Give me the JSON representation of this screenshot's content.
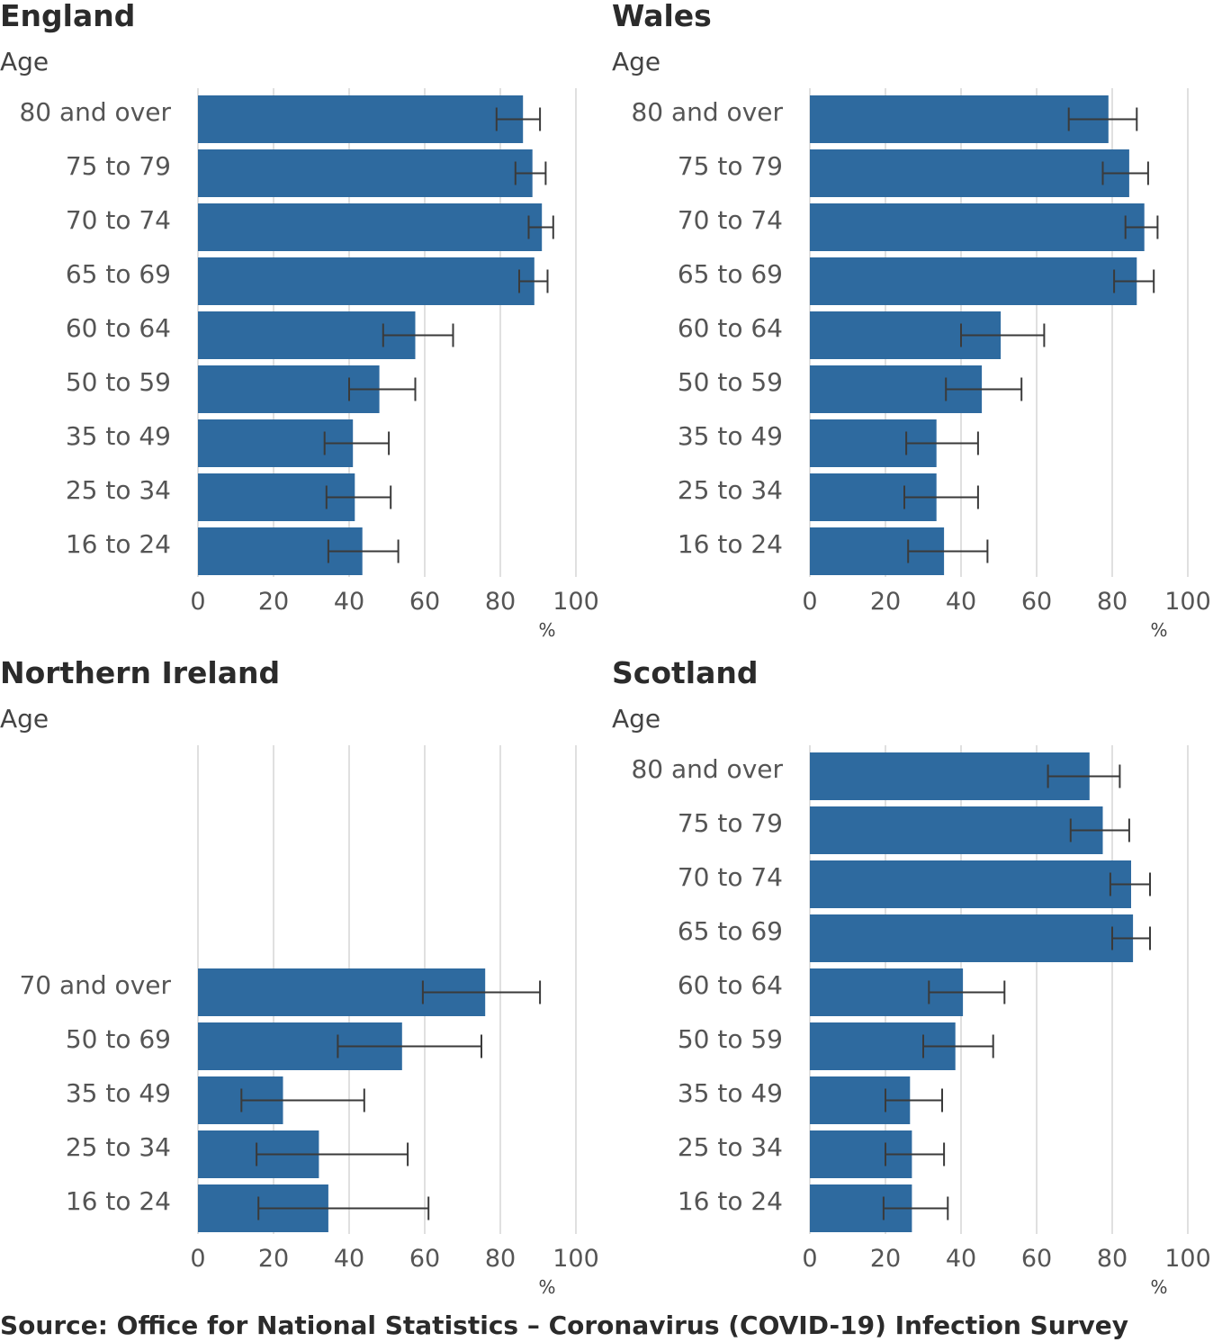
{
  "source": "Source: Office for National Statistics – Coronavirus (COVID-19) Infection Survey",
  "colors": {
    "bar": "#2e6a9f",
    "error_bar": "#3a3a3a",
    "grid": "#d6d6d6"
  },
  "chart_data": [
    {
      "type": "bar",
      "orientation": "horizontal",
      "title": "England",
      "ylabel": "Age",
      "xlabel": "%",
      "xlim": [
        0,
        100
      ],
      "xticks": [
        0,
        20,
        40,
        60,
        80,
        100
      ],
      "error_bars": true,
      "grid": true,
      "categories": [
        "80 and over",
        "75 to 79",
        "70 to 74",
        "65 to 69",
        "60 to 64",
        "50 to 59",
        "35 to 49",
        "25 to 34",
        "16 to 24"
      ],
      "values": [
        86,
        88.5,
        91,
        89,
        57.5,
        48,
        41,
        41.5,
        43.5
      ],
      "lower": [
        79,
        84,
        87.5,
        85,
        49,
        40,
        33.5,
        34,
        34.5
      ],
      "upper": [
        90.5,
        92,
        94,
        92.5,
        67.5,
        57.5,
        50.5,
        51,
        53
      ]
    },
    {
      "type": "bar",
      "orientation": "horizontal",
      "title": "Wales",
      "ylabel": "Age",
      "xlabel": "%",
      "xlim": [
        0,
        100
      ],
      "xticks": [
        0,
        20,
        40,
        60,
        80,
        100
      ],
      "error_bars": true,
      "grid": true,
      "categories": [
        "80 and over",
        "75 to 79",
        "70 to 74",
        "65 to 69",
        "60 to 64",
        "50 to 59",
        "35 to 49",
        "25 to 34",
        "16 to 24"
      ],
      "values": [
        79,
        84.5,
        88.5,
        86.5,
        50.5,
        45.5,
        33.5,
        33.5,
        35.5
      ],
      "lower": [
        68.5,
        77.5,
        83.5,
        80.5,
        40,
        36,
        25.5,
        25,
        26
      ],
      "upper": [
        86.5,
        89.5,
        92,
        91,
        62,
        56,
        44.5,
        44.5,
        47
      ]
    },
    {
      "type": "bar",
      "orientation": "horizontal",
      "title": "Northern Ireland",
      "ylabel": "Age",
      "xlabel": "%",
      "xlim": [
        0,
        100
      ],
      "xticks": [
        0,
        20,
        40,
        60,
        80,
        100
      ],
      "error_bars": true,
      "grid": true,
      "categories": [
        "70 and over",
        "50 to 69",
        "35 to 49",
        "25 to 34",
        "16 to 24"
      ],
      "values": [
        76,
        54,
        22.5,
        32,
        34.5
      ],
      "lower": [
        59.5,
        37,
        11.5,
        15.5,
        16
      ],
      "upper": [
        90.5,
        75,
        44,
        55.5,
        61
      ]
    },
    {
      "type": "bar",
      "orientation": "horizontal",
      "title": "Scotland",
      "ylabel": "Age",
      "xlabel": "%",
      "xlim": [
        0,
        100
      ],
      "xticks": [
        0,
        20,
        40,
        60,
        80,
        100
      ],
      "error_bars": true,
      "grid": true,
      "categories": [
        "80 and over",
        "75 to 79",
        "70 to 74",
        "65 to 69",
        "60 to 64",
        "50 to 59",
        "35 to 49",
        "25 to 34",
        "16 to 24"
      ],
      "values": [
        74,
        77.5,
        85,
        85.5,
        40.5,
        38.5,
        26.5,
        27,
        27
      ],
      "lower": [
        63,
        69,
        79.5,
        80,
        31.5,
        30,
        20,
        20,
        19.5
      ],
      "upper": [
        82,
        84.5,
        90,
        90,
        51.5,
        48.5,
        35,
        35.5,
        36.5
      ]
    }
  ]
}
